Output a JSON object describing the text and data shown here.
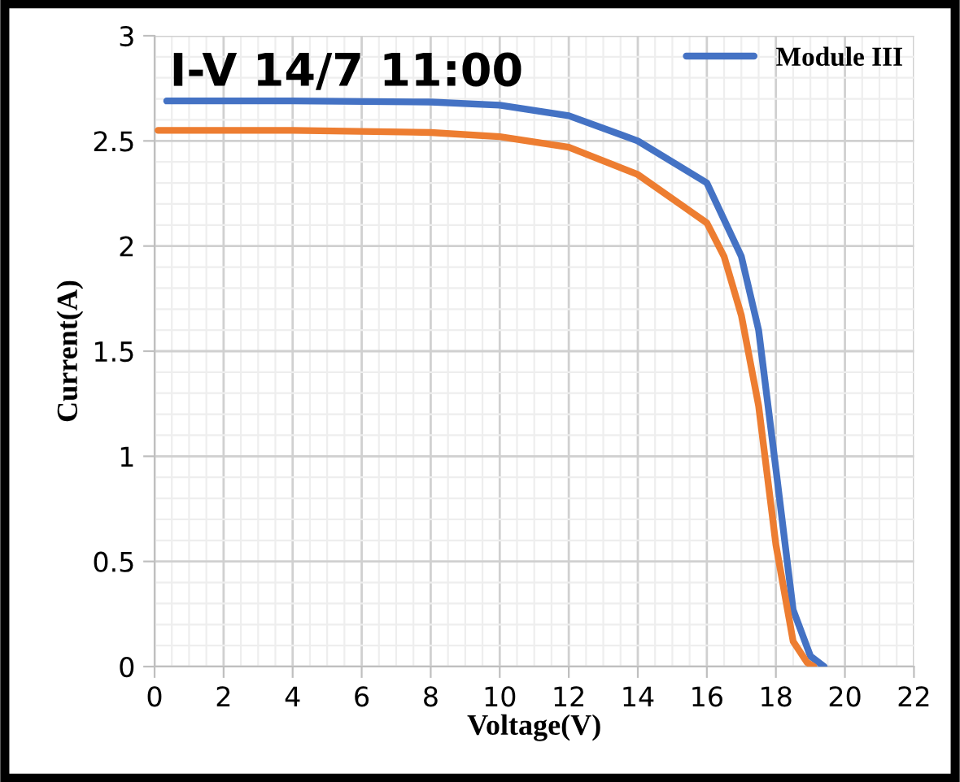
{
  "chart_data": {
    "type": "line",
    "title": "I-V 14/7 11:00",
    "xlabel": "Voltage(V)",
    "ylabel": "Current(A)",
    "xlim": [
      0,
      22
    ],
    "xticks": [
      0,
      2,
      4,
      6,
      8,
      10,
      12,
      14,
      16,
      18,
      20,
      22
    ],
    "ylim": [
      0,
      3
    ],
    "yticks": [
      0,
      0.5,
      1,
      1.5,
      2,
      2.5,
      3
    ],
    "grid": true,
    "legend": "top right",
    "series": [
      {
        "name": "Module III",
        "color": "#4472c4",
        "x": [
          0.35,
          4,
          8,
          10,
          12,
          14,
          16,
          17,
          17.5,
          18,
          18.5,
          19,
          19.4
        ],
        "values": [
          2.69,
          2.69,
          2.685,
          2.67,
          2.62,
          2.5,
          2.3,
          1.95,
          1.6,
          0.94,
          0.27,
          0.05,
          0
        ]
      },
      {
        "color": "#ed7d31",
        "x": [
          0.1,
          4,
          8,
          10,
          12,
          14,
          16,
          16.5,
          17,
          17.5,
          18,
          18.5,
          18.9,
          19.1
        ],
        "values": [
          2.55,
          2.55,
          2.54,
          2.52,
          2.47,
          2.34,
          2.11,
          1.95,
          1.67,
          1.24,
          0.58,
          0.12,
          0.02,
          0
        ]
      }
    ]
  }
}
